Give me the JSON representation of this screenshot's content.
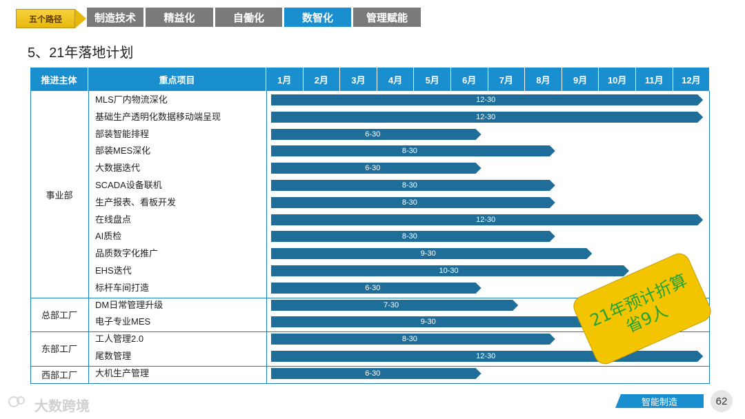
{
  "nav": {
    "badge": "五个路径",
    "tabs": [
      {
        "label": "制造技术",
        "active": false
      },
      {
        "label": "精益化",
        "active": false
      },
      {
        "label": "自働化",
        "active": false
      },
      {
        "label": "数智化",
        "active": true
      },
      {
        "label": "管理赋能",
        "active": false
      }
    ]
  },
  "heading": "5、21年落地计划",
  "table": {
    "col_owner": "推进主体",
    "col_project": "重点项目",
    "months": [
      "1月",
      "2月",
      "3月",
      "4月",
      "5月",
      "6月",
      "7月",
      "8月",
      "9月",
      "10月",
      "11月",
      "12月"
    ],
    "groups": [
      {
        "name": "事业部",
        "rows": [
          {
            "project": "MLS厂内物流深化",
            "end_label": "12-30",
            "end_month": 12
          },
          {
            "project": "基础生产透明化数据移动端呈现",
            "end_label": "12-30",
            "end_month": 12
          },
          {
            "project": "部装智能排程",
            "end_label": "6-30",
            "end_month": 6
          },
          {
            "project": "部装MES深化",
            "end_label": "8-30",
            "end_month": 8
          },
          {
            "project": "大数据迭代",
            "end_label": "6-30",
            "end_month": 6
          },
          {
            "project": "SCADA设备联机",
            "end_label": "8-30",
            "end_month": 8
          },
          {
            "project": "生产报表、看板开发",
            "end_label": "8-30",
            "end_month": 8
          },
          {
            "project": "在线盘点",
            "end_label": "12-30",
            "end_month": 12
          },
          {
            "project": "AI质检",
            "end_label": "8-30",
            "end_month": 8
          },
          {
            "project": "品质数字化推广",
            "end_label": "9-30",
            "end_month": 9
          },
          {
            "project": "EHS迭代",
            "end_label": "10-30",
            "end_month": 10
          },
          {
            "project": "标杆车间打造",
            "end_label": "6-30",
            "end_month": 6
          }
        ]
      },
      {
        "name": "总部工厂",
        "rows": [
          {
            "project": "DM日常管理升级",
            "end_label": "7-30",
            "end_month": 7
          },
          {
            "project": "电子专业MES",
            "end_label": "9-30",
            "end_month": 9
          }
        ]
      },
      {
        "name": "东部工厂",
        "rows": [
          {
            "project": "工人管理2.0",
            "end_label": "8-30",
            "end_month": 8
          },
          {
            "project": "尾数管理",
            "end_label": "12-30",
            "end_month": 12
          }
        ]
      },
      {
        "name": "西部工厂",
        "rows": [
          {
            "project": "大机生产管理",
            "end_label": "6-30",
            "end_month": 6
          }
        ]
      }
    ]
  },
  "callout": {
    "line1": "21年预计折算",
    "line2": "省9人"
  },
  "footer": {
    "watermark": "大数跨境",
    "section_label": "智能制造",
    "page_number": "62"
  },
  "colors": {
    "accent": "#1a8fd0",
    "bar": "#1f6e99",
    "nav_inactive": "#7a7a7a",
    "badge": "#e8b80c",
    "callout": "#f3c400"
  }
}
